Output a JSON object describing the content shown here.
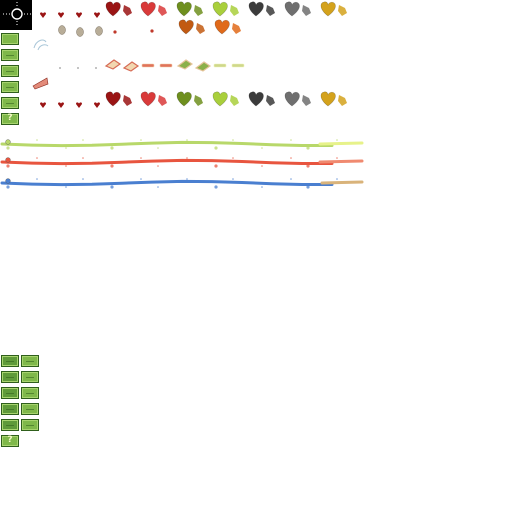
{
  "sheet": {
    "width": 512,
    "height": 512,
    "background": "#ffffff",
    "question_glyph": "?"
  },
  "palette": {
    "dark_red": "#9a1414",
    "red": "#d93a3a",
    "olive": "#6e8f1e",
    "lime": "#a9cf3c",
    "charcoal": "#3b3b3b",
    "gray": "#6f6f6f",
    "gold": "#d4a21c",
    "burnt_orange": "#c25a12",
    "orange": "#e06a1a",
    "trail_green": "#b8d86a",
    "trail_red": "#e8553f",
    "trail_blue": "#4a7fd0",
    "trail_tan": "#d9b37a"
  },
  "rows": [
    {
      "name": "hearts-row-1",
      "items": [
        "small-heart",
        "small-heart",
        "small-heart",
        "small-heart",
        "big-heart-dark-red",
        "big-heart-red",
        "big-heart-olive",
        "big-heart-lime",
        "big-heart-charcoal",
        "big-heart-gray",
        "big-heart-gold"
      ]
    },
    {
      "name": "shards-row",
      "items": [
        "glass-shard",
        "pebble",
        "pebble",
        "pebble",
        "pebble",
        "tiny-red-dot",
        "tiny-red-dot",
        "heart-burnt-orange",
        "heart-orange"
      ]
    },
    {
      "name": "pie-row",
      "items": [
        "pie-slice",
        "dot",
        "dot",
        "dot",
        "cake-slice",
        "cake-slice",
        "bar-slice",
        "bar-slice",
        "cake-slice",
        "cake-slice",
        "bar-slice",
        "bar-slice"
      ]
    },
    {
      "name": "hearts-row-2",
      "items": [
        "small-heart",
        "small-heart",
        "small-heart",
        "small-heart",
        "big-heart-dark-red",
        "big-heart-red",
        "big-heart-olive",
        "big-heart-lime",
        "big-heart-charcoal",
        "big-heart-gray",
        "big-heart-gold"
      ]
    }
  ],
  "trails": [
    "green",
    "red",
    "blue"
  ],
  "tiles_upper": [
    "plain",
    "bar",
    "bar",
    "bar",
    "bar",
    "question"
  ],
  "tiles_lower": [
    "pair",
    "pair",
    "pair",
    "pair",
    "pair",
    "question"
  ]
}
